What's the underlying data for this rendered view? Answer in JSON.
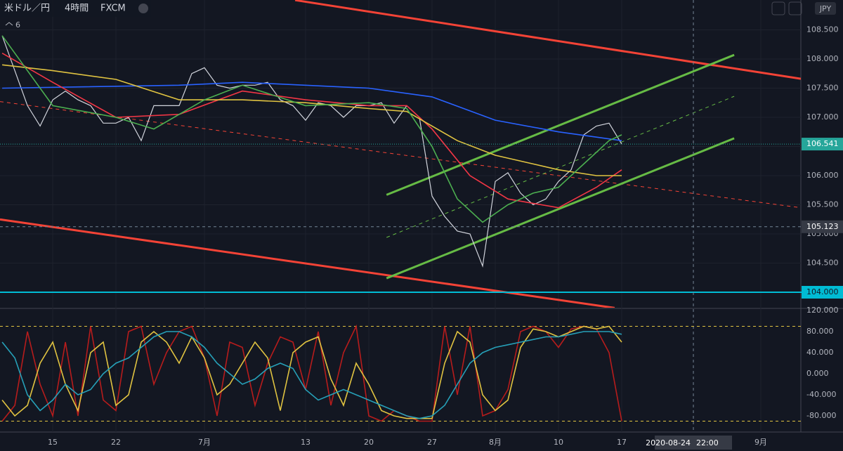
{
  "toolbar": {
    "symbol": "米ドル／円",
    "interval": "4時間",
    "source": "FXCM",
    "indicators": "6",
    "currency": "JPY"
  },
  "crosshair": {
    "date": "2020-08-24",
    "time": "22:00",
    "x": 50.67,
    "y": 105.123
  },
  "chart_data": [
    {
      "type": "line",
      "xlim": [
        -4.17,
        59.17
      ],
      "ylim": [
        103.735,
        109.012
      ],
      "xticks": [
        {
          "value": 0,
          "label": "15"
        },
        {
          "value": 5,
          "label": "22"
        },
        {
          "value": 12,
          "label": "7月"
        },
        {
          "value": 20,
          "label": "13"
        },
        {
          "value": 25,
          "label": "20"
        },
        {
          "value": 30,
          "label": "27"
        },
        {
          "value": 35,
          "label": "8月"
        },
        {
          "value": 40,
          "label": "10"
        },
        {
          "value": 45,
          "label": "17"
        },
        {
          "value": 56,
          "label": "9月"
        }
      ],
      "yticks": [
        {
          "value": 104.5,
          "label": "104.500"
        },
        {
          "value": 105,
          "label": "105.000"
        },
        {
          "value": 105.5,
          "label": "105.500"
        },
        {
          "value": 106,
          "label": "106.000"
        },
        {
          "value": 106.5,
          "label": "106.500"
        },
        {
          "value": 107,
          "label": "107.000"
        },
        {
          "value": 107.5,
          "label": "107.500"
        },
        {
          "value": 108,
          "label": "108.000"
        },
        {
          "value": 108.5,
          "label": "108.500"
        }
      ],
      "grid": true,
      "last_price": 106.541,
      "last_color": "#26a69a",
      "level": {
        "value": 104,
        "label": "104.000",
        "color": "#00bcd4"
      },
      "series": [
        {
          "color": "#d1d4dc",
          "x": [
            -4,
            -3,
            -2,
            -1,
            0,
            1,
            2,
            3,
            4,
            5,
            6,
            7,
            8,
            9,
            10,
            11,
            12,
            13,
            14,
            15,
            16,
            17,
            18,
            19,
            20,
            21,
            22,
            23,
            24,
            25,
            26,
            27,
            28,
            29,
            30,
            31,
            32,
            33,
            34,
            35,
            36,
            37,
            38,
            39,
            40,
            41,
            42,
            43,
            44,
            45
          ],
          "values": [
            108.4,
            107.8,
            107.2,
            106.85,
            107.3,
            107.45,
            107.3,
            107.2,
            106.9,
            106.9,
            107.0,
            106.6,
            107.2,
            107.2,
            107.2,
            107.75,
            107.85,
            107.55,
            107.5,
            107.55,
            107.55,
            107.6,
            107.3,
            107.2,
            106.95,
            107.25,
            107.2,
            107.0,
            107.2,
            107.2,
            107.25,
            106.9,
            107.2,
            107.0,
            105.65,
            105.3,
            105.05,
            105.0,
            104.45,
            105.9,
            106.05,
            105.7,
            105.5,
            105.6,
            105.9,
            106.1,
            106.7,
            106.85,
            106.9,
            106.541
          ]
        },
        {
          "color": "#2962ff",
          "x": [
            -4,
            10,
            15,
            25,
            30,
            35,
            40,
            45
          ],
          "values": [
            107.5,
            107.55,
            107.6,
            107.5,
            107.35,
            106.95,
            106.75,
            106.6
          ]
        },
        {
          "color": "#f23645",
          "x": [
            -4,
            0,
            5,
            10,
            15,
            20,
            25,
            28,
            30,
            33,
            36,
            40,
            43,
            45
          ],
          "values": [
            108.1,
            107.6,
            107.0,
            107.05,
            107.45,
            107.3,
            107.2,
            107.2,
            106.8,
            106.0,
            105.6,
            105.45,
            105.8,
            106.1
          ]
        },
        {
          "color": "#e0c341",
          "x": [
            -4,
            0,
            5,
            10,
            15,
            20,
            25,
            28,
            32,
            35,
            38,
            40,
            43,
            45
          ],
          "values": [
            107.9,
            107.8,
            107.65,
            107.3,
            107.3,
            107.25,
            107.15,
            107.1,
            106.6,
            106.35,
            106.2,
            106.1,
            106.0,
            106.0
          ]
        },
        {
          "color": "#4caf50",
          "x": [
            -4,
            0,
            5,
            8,
            12,
            15,
            20,
            25,
            28,
            30,
            32,
            34,
            36,
            38,
            40,
            42,
            44,
            45
          ],
          "values": [
            108.4,
            107.2,
            107.0,
            106.8,
            107.3,
            107.55,
            107.2,
            107.25,
            107.15,
            106.5,
            105.6,
            105.2,
            105.5,
            105.7,
            105.8,
            106.2,
            106.6,
            106.7
          ]
        }
      ],
      "lines": [
        {
          "color": "#f44336",
          "x": [
            19.17,
            59.17
          ],
          "values": [
            109.01,
            107.66
          ]
        },
        {
          "color": "#f44336",
          "x": [
            -4.17,
            44.44
          ],
          "values": [
            105.25,
            103.73
          ]
        },
        {
          "color": "#f44336",
          "dashed": true,
          "x": [
            -4.17,
            59.17
          ],
          "values": [
            107.27,
            105.45
          ]
        },
        {
          "color": "#66bb45",
          "x": [
            26.4,
            53.9
          ],
          "values": [
            105.67,
            108.07
          ]
        },
        {
          "color": "#66bb45",
          "x": [
            26.4,
            53.9
          ],
          "values": [
            104.24,
            106.64
          ]
        },
        {
          "color": "#66bb45",
          "dashed": true,
          "x": [
            26.4,
            53.9
          ],
          "values": [
            104.94,
            107.36
          ]
        }
      ]
    },
    {
      "type": "line",
      "ylim": [
        -110.7,
        122.7
      ],
      "yticks": [
        {
          "value": 120,
          "label": "120.000"
        },
        {
          "value": 80,
          "label": "80.000"
        },
        {
          "value": 40,
          "label": "40.000"
        },
        {
          "value": 0,
          "label": "0.000"
        },
        {
          "value": -40,
          "label": "-40.000"
        },
        {
          "value": -80,
          "label": "-80.000"
        }
      ],
      "levels": [
        90,
        -90
      ],
      "level_color": "#e0c341",
      "series": [
        {
          "color": "#b71c1c",
          "x": [
            -4,
            -3,
            -2,
            -1,
            0,
            1,
            2,
            3,
            4,
            5,
            6,
            7,
            8,
            9,
            10,
            11,
            12,
            13,
            14,
            15,
            16,
            17,
            18,
            19,
            20,
            21,
            22,
            23,
            24,
            25,
            26,
            27,
            28,
            29,
            30,
            31,
            32,
            33,
            34,
            35,
            36,
            37,
            38,
            39,
            40,
            41,
            42,
            43,
            44,
            45
          ],
          "values": [
            -90,
            -60,
            80,
            -20,
            -80,
            60,
            -80,
            90,
            -50,
            -70,
            80,
            90,
            -20,
            40,
            80,
            90,
            30,
            -80,
            60,
            50,
            -60,
            20,
            70,
            60,
            -30,
            80,
            -60,
            40,
            90,
            -80,
            -90,
            -70,
            -80,
            -90,
            -90,
            90,
            -40,
            90,
            -80,
            -70,
            -30,
            80,
            90,
            80,
            50,
            85,
            90,
            85,
            40,
            -90
          ]
        },
        {
          "color": "#e0c341",
          "x": [
            -4,
            -3,
            -2,
            -1,
            0,
            1,
            2,
            3,
            4,
            5,
            6,
            7,
            8,
            9,
            10,
            11,
            12,
            13,
            14,
            15,
            16,
            17,
            18,
            19,
            20,
            21,
            22,
            23,
            24,
            25,
            26,
            27,
            28,
            29,
            30,
            31,
            32,
            33,
            34,
            35,
            36,
            37,
            38,
            39,
            40,
            41,
            42,
            43,
            44,
            45
          ],
          "values": [
            -50,
            -80,
            -60,
            20,
            60,
            -20,
            -70,
            40,
            60,
            -60,
            -40,
            60,
            80,
            60,
            20,
            70,
            30,
            -40,
            -20,
            20,
            60,
            30,
            -70,
            40,
            60,
            70,
            -10,
            -60,
            20,
            -20,
            -70,
            -80,
            -85,
            -85,
            -85,
            20,
            80,
            60,
            -40,
            -70,
            -50,
            50,
            85,
            80,
            70,
            80,
            90,
            85,
            90,
            60
          ]
        },
        {
          "color": "#26a0b8",
          "x": [
            -4,
            -3,
            -2,
            -1,
            0,
            1,
            2,
            3,
            4,
            5,
            6,
            7,
            8,
            9,
            10,
            11,
            12,
            13,
            14,
            15,
            16,
            17,
            18,
            19,
            20,
            21,
            22,
            23,
            24,
            25,
            26,
            27,
            28,
            29,
            30,
            31,
            32,
            33,
            34,
            35,
            36,
            37,
            38,
            39,
            40,
            41,
            42,
            43,
            44,
            45
          ],
          "values": [
            60,
            30,
            -40,
            -70,
            -50,
            -20,
            -40,
            -30,
            0,
            20,
            30,
            50,
            70,
            80,
            80,
            70,
            50,
            20,
            0,
            -20,
            -10,
            10,
            20,
            10,
            -30,
            -50,
            -40,
            -30,
            -40,
            -50,
            -60,
            -70,
            -80,
            -85,
            -80,
            -60,
            -20,
            20,
            40,
            50,
            55,
            60,
            65,
            70,
            70,
            75,
            80,
            80,
            80,
            75
          ]
        }
      ]
    }
  ]
}
